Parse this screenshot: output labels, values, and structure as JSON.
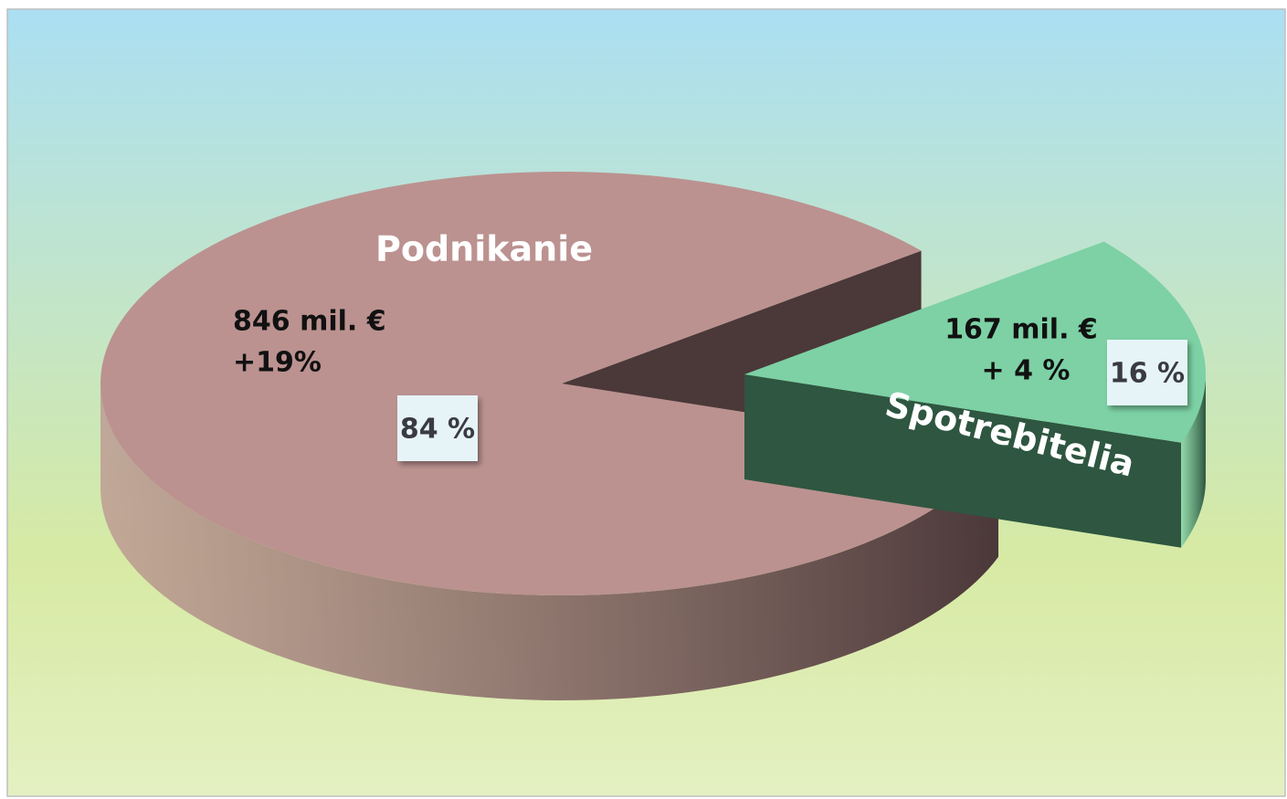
{
  "chart_data": {
    "type": "pie",
    "categories": [
      "Podnikanie",
      "Spotrebitelia"
    ],
    "values": [
      84,
      16
    ],
    "value_labels": [
      "84 %",
      "16 %"
    ],
    "colors": [
      "#bb9290",
      "#7dd1a5"
    ],
    "side_colors": [
      "#4b3839",
      "#2e5640"
    ],
    "annotations": [
      "846 mil. €",
      "+19%",
      "167 mil. €",
      "+ 4 %"
    ]
  }
}
